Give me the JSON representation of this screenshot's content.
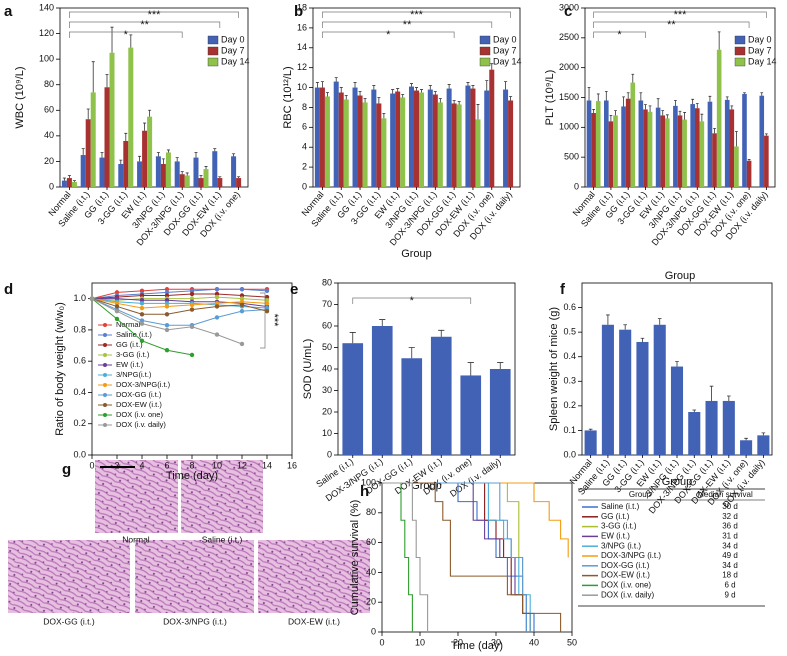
{
  "panel_labels": [
    "a",
    "b",
    "c",
    "d",
    "e",
    "f",
    "g",
    "h"
  ],
  "chart_data": [
    {
      "type": "bar",
      "ylabel": "WBC (10⁹/L)",
      "categories": [
        "Normal",
        "Saline (i.t.)",
        "GG (i.t.)",
        "3-GG (i.t.)",
        "EW (i.t.)",
        "3/NPG (i.t.)",
        "DOX-3/NPG (i.t.)",
        "DOX-GG (i.t.)",
        "DOX-EW (i.t.)",
        "DOX (i.v. one)"
      ],
      "series": [
        {
          "name": "Day 0",
          "color": "#4262b5",
          "values": [
            5,
            25,
            23,
            18,
            20,
            24,
            20,
            23,
            28,
            24
          ],
          "errors": [
            2,
            5,
            4,
            3,
            4,
            3,
            3,
            4,
            2,
            2
          ]
        },
        {
          "name": "Day 7",
          "color": "#a83232",
          "values": [
            7,
            53,
            78,
            36,
            44,
            18,
            10,
            7,
            7,
            7
          ],
          "errors": [
            2,
            8,
            10,
            6,
            6,
            4,
            2,
            2,
            1,
            1
          ]
        },
        {
          "name": "Day 14",
          "color": "#8fc24a",
          "values": [
            4,
            74,
            105,
            109,
            55,
            27,
            9,
            14,
            null,
            null
          ],
          "errors": [
            1,
            24,
            20,
            10,
            5,
            2,
            2,
            2,
            null,
            null
          ]
        }
      ],
      "ylim": [
        0,
        140
      ],
      "yticks": [
        0,
        20,
        40,
        60,
        80,
        100,
        120,
        140
      ],
      "annotations": [
        "***",
        "**",
        "*"
      ]
    },
    {
      "type": "bar",
      "ylabel": "RBC (10¹²/L)",
      "xlabel": "Group",
      "categories": [
        "Normal",
        "Saline (i.t.)",
        "GG (i.t.)",
        "3-GG (i.t.)",
        "EW (i.t.)",
        "3/NPG (i.t.)",
        "DOX-3/NPG (i.t.)",
        "DOX-GG (i.t.)",
        "DOX-EW (i.t.)",
        "DOX (i.v. one)",
        "DOX (i.v. daily)"
      ],
      "series": [
        {
          "name": "Day 0",
          "color": "#4262b5",
          "values": [
            10,
            10.6,
            10,
            9.8,
            9.4,
            10.1,
            9.8,
            9.9,
            10.2,
            9.7,
            9.8
          ],
          "errors": [
            0.5,
            0.4,
            0.5,
            0.4,
            0.4,
            0.3,
            0.4,
            0.4,
            0.3,
            1.0,
            0.8
          ]
        },
        {
          "name": "Day 7",
          "color": "#a83232",
          "values": [
            10,
            9.5,
            9.2,
            8.4,
            9.6,
            9.7,
            9.3,
            8.4,
            9.9,
            11.8,
            8.7
          ],
          "errors": [
            0.6,
            0.5,
            0.4,
            0.6,
            0.3,
            0.3,
            0.3,
            0.3,
            0.3,
            0.6,
            0.4
          ]
        },
        {
          "name": "Day 14",
          "color": "#8fc24a",
          "values": [
            9.1,
            8.8,
            8.5,
            6.9,
            9,
            9.5,
            8.5,
            8.3,
            6.8,
            null,
            null
          ],
          "errors": [
            0.4,
            0.4,
            0.4,
            0.5,
            0.3,
            0.3,
            0.4,
            0.3,
            1.5,
            null,
            null
          ]
        }
      ],
      "ylim": [
        0,
        18
      ],
      "yticks": [
        0,
        2,
        4,
        6,
        8,
        10,
        12,
        14,
        16,
        18
      ],
      "annotations": [
        "***",
        "**",
        "*"
      ]
    },
    {
      "type": "bar",
      "ylabel": "PLT (10⁹/L)",
      "xlabel": "Group",
      "categories": [
        "Normal",
        "Saline (i.t.)",
        "GG (i.t.)",
        "3-GG (i.t.)",
        "EW (i.t.)",
        "3/NPG (i.t.)",
        "DOX-3/NPG (i.t.)",
        "DOX-GG (i.t.)",
        "DOX-EW (i.t.)",
        "DOX (i.v. one)",
        "DOX (i.v. daily)"
      ],
      "series": [
        {
          "name": "Day 0",
          "color": "#4262b5",
          "values": [
            1450,
            1450,
            1350,
            1450,
            1330,
            1360,
            1390,
            1430,
            1460,
            1560,
            1530
          ],
          "errors": [
            220,
            150,
            160,
            130,
            150,
            90,
            80,
            90,
            50,
            20,
            50
          ]
        },
        {
          "name": "Day 7",
          "color": "#a83232",
          "values": [
            1240,
            1100,
            1480,
            1300,
            1200,
            1200,
            1320,
            900,
            1300,
            440,
            860
          ],
          "errors": [
            60,
            100,
            100,
            80,
            80,
            70,
            80,
            80,
            60,
            20,
            30
          ]
        },
        {
          "name": "Day 14",
          "color": "#8fc24a",
          "values": [
            1440,
            1200,
            1750,
            1260,
            1150,
            1130,
            1100,
            2300,
            680,
            null,
            null
          ],
          "errors": [
            120,
            80,
            140,
            100,
            60,
            120,
            120,
            300,
            250,
            null,
            null
          ]
        }
      ],
      "ylim": [
        0,
        3000
      ],
      "yticks": [
        0,
        500,
        1000,
        1500,
        2000,
        2500,
        3000
      ],
      "annotations": [
        "***",
        "**",
        "*"
      ]
    },
    {
      "type": "line",
      "ylabel": "Ratio of body weight (w/w₀)",
      "xlabel": "Time (day)",
      "x": [
        0,
        2,
        4,
        6,
        8,
        10,
        12,
        14
      ],
      "series": [
        {
          "name": "Normal",
          "color": "#e0413a",
          "values": [
            1,
            1.04,
            1.05,
            1.06,
            1.06,
            1.06,
            1.06,
            1.06
          ]
        },
        {
          "name": "Saline (i.t.)",
          "color": "#5a7fd0",
          "values": [
            1,
            1.02,
            1.03,
            1.04,
            1.05,
            1.06,
            1.06,
            1.05
          ]
        },
        {
          "name": "GG (i.t.)",
          "color": "#9b2a2a",
          "values": [
            1,
            1.01,
            1.02,
            1.02,
            1.03,
            1.03,
            1.02,
            1.01
          ]
        },
        {
          "name": "3-GG (i.t.)",
          "color": "#a9c23f",
          "values": [
            1,
            0.99,
            1,
            1,
            1,
            1.01,
            1,
            0.99
          ]
        },
        {
          "name": "EW (i.t.)",
          "color": "#6a3d9a",
          "values": [
            1,
            1,
            0.99,
            0.99,
            0.98,
            0.98,
            0.97,
            0.95
          ]
        },
        {
          "name": "3/NPG(i.t.)",
          "color": "#4ab0d8",
          "values": [
            1,
            0.98,
            0.97,
            0.97,
            0.97,
            0.96,
            0.95,
            0.94
          ]
        },
        {
          "name": "DOX-3/NPG(i.t.)",
          "color": "#f39c12",
          "values": [
            1,
            0.97,
            0.94,
            0.95,
            0.96,
            0.97,
            0.98,
            0.97
          ]
        },
        {
          "name": "DOX-GG (i.t.)",
          "color": "#5b9bd5",
          "values": [
            1,
            0.93,
            0.86,
            0.83,
            0.83,
            0.88,
            0.92,
            0.93
          ]
        },
        {
          "name": "DOX-EW (i.t.)",
          "color": "#8b5a2b",
          "values": [
            1,
            0.95,
            0.9,
            0.9,
            0.93,
            0.95,
            0.96,
            0.92
          ]
        },
        {
          "name": "DOX (i.v. one)",
          "color": "#2e9e2e",
          "values": [
            1,
            0.87,
            0.73,
            0.67,
            0.64,
            null,
            null,
            null
          ]
        },
        {
          "name": "DOX (i.v. daily)",
          "color": "#999999",
          "values": [
            1,
            0.92,
            0.84,
            0.8,
            0.82,
            0.77,
            0.71,
            null
          ]
        }
      ],
      "xlim": [
        0,
        16
      ],
      "xticks": [
        0,
        2,
        4,
        6,
        8,
        10,
        12,
        14,
        16
      ],
      "ylim": [
        0,
        1.1
      ],
      "yticks": [
        {
          "value": 0,
          "label": "0.0"
        },
        0.2,
        0.4,
        0.6,
        0.8,
        {
          "value": 1,
          "label": "1.0"
        }
      ],
      "annotations": [
        "***"
      ]
    },
    {
      "type": "bar",
      "ylabel": "SOD (U/mL)",
      "xlabel": "Group",
      "categories": [
        "Saline (i.t.)",
        "DOX-3/NPG (i.t.)",
        "DOX-GG (i.t.)",
        "DOX-EW (i.t.)",
        "DOX (i.v. one)",
        "DOX (i.v. daily)"
      ],
      "values": [
        52,
        60,
        45,
        55,
        37,
        40
      ],
      "errors": [
        5,
        3,
        5,
        3,
        6,
        3
      ],
      "color": "#4262b5",
      "ylim": [
        0,
        80
      ],
      "yticks": [
        0,
        10,
        20,
        30,
        40,
        50,
        60,
        70,
        80
      ],
      "annotations": [
        "*"
      ]
    },
    {
      "type": "bar",
      "ylabel": "Spleen weight of mice (g)",
      "xlabel": "Group",
      "categories": [
        "Normal",
        "Saline (i.t.)",
        "GG (i.t.)",
        "3-GG (i.t.)",
        "EW (i.t.)",
        "3/NPG (i.t.)",
        "DOX-3/NPG (i.t.)",
        "DOX-GG (i.t.)",
        "DOX-EW (i.t.)",
        "DOX (i.v. one)",
        "DOX (i.v. daily)"
      ],
      "values": [
        0.1,
        0.53,
        0.51,
        0.46,
        0.53,
        0.36,
        0.175,
        0.22,
        0.22,
        0.06,
        0.08
      ],
      "errors": [
        0.005,
        0.04,
        0.02,
        0.015,
        0.025,
        0.02,
        0.008,
        0.06,
        0.02,
        0.008,
        0.01
      ],
      "color": "#4262b5",
      "ylim": [
        0,
        0.7
      ],
      "yticks": [
        {
          "value": 0,
          "label": "0.0"
        },
        0.1,
        0.2,
        0.3,
        0.4,
        0.5,
        0.6
      ]
    },
    {
      "type": "step",
      "ylabel": "Cumulative survival (%)",
      "xlabel": "Time (day)",
      "series": [
        {
          "name": "Saline (i.t.)",
          "color": "#3a6fd0",
          "x": [
            0,
            20,
            25,
            28,
            30,
            33,
            37,
            40
          ],
          "values": [
            100,
            87.5,
            75,
            62.5,
            50,
            37.5,
            12.5,
            0
          ]
        },
        {
          "name": "GG (i.t.)",
          "color": "#8b1a1a",
          "x": [
            0,
            27,
            30,
            32,
            34,
            37,
            39
          ],
          "values": [
            100,
            75,
            62.5,
            50,
            25,
            12.5,
            0
          ]
        },
        {
          "name": "3-GG (i.t.)",
          "color": "#a8c030",
          "x": [
            0,
            33,
            36,
            37,
            38
          ],
          "values": [
            100,
            87.5,
            50,
            25,
            0
          ]
        },
        {
          "name": "EW (i.t.)",
          "color": "#6a3d9a",
          "x": [
            0,
            24,
            27,
            31,
            35,
            38
          ],
          "values": [
            100,
            75,
            62.5,
            50,
            25,
            0
          ]
        },
        {
          "name": "3/NPG (i.t.)",
          "color": "#4ab0d8",
          "x": [
            0,
            28,
            32,
            34,
            36,
            39
          ],
          "values": [
            100,
            75,
            62.5,
            50,
            25,
            0
          ]
        },
        {
          "name": "DOX-3/NPG (i.t.)",
          "color": "#f39c12",
          "x": [
            0,
            40,
            44,
            47,
            49
          ],
          "values": [
            100,
            87.5,
            75,
            62.5,
            50
          ]
        },
        {
          "name": "DOX-GG (i.t.)",
          "color": "#5b9bd5",
          "x": [
            0,
            31,
            33,
            34,
            37,
            38
          ],
          "values": [
            100,
            75,
            62.5,
            50,
            25,
            0
          ]
        },
        {
          "name": "DOX-EW (i.t.)",
          "color": "#8b5a2b",
          "x": [
            0,
            14,
            16,
            18,
            33,
            37,
            47
          ],
          "values": [
            100,
            87.5,
            75,
            37.5,
            25,
            12.5,
            0
          ]
        },
        {
          "name": "DOX (i.v. one)",
          "color": "#2e9e2e",
          "x": [
            0,
            5,
            6,
            7,
            8
          ],
          "values": [
            100,
            75,
            50,
            25,
            0
          ]
        },
        {
          "name": "DOX (i.v. daily)",
          "color": "#999999",
          "x": [
            0,
            8,
            9,
            10,
            12
          ],
          "values": [
            100,
            75,
            50,
            25,
            0
          ]
        }
      ],
      "xlim": [
        0,
        50
      ],
      "xticks": [
        0,
        10,
        20,
        30,
        40,
        50
      ],
      "ylim": [
        0,
        100
      ],
      "yticks": [
        0,
        20,
        40,
        60,
        80,
        100
      ]
    }
  ],
  "figure_g": {
    "captions": [
      "Normal",
      "Saline (i.t.)",
      "DOX-GG (i.t.)",
      "DOX-3/NPG (i.t.)",
      "DOX-EW (i.t.)"
    ]
  },
  "table_h": {
    "header": [
      "Group",
      "Median survival"
    ],
    "median_survival": [
      "30 d",
      "32 d",
      "36 d",
      "31 d",
      "34 d",
      "49 d",
      "34 d",
      "18 d",
      "6 d",
      "9 d"
    ]
  }
}
